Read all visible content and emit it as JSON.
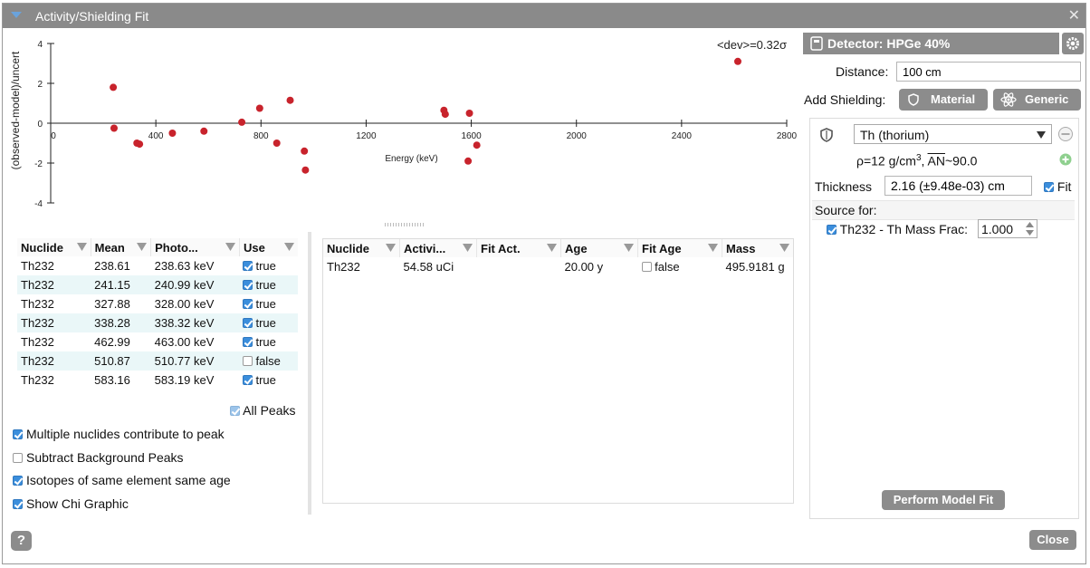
{
  "window": {
    "title": "Activity/Shielding Fit"
  },
  "chart_data": {
    "type": "scatter",
    "title": "",
    "annotation": "<dev>=0.32σ",
    "xlabel": "Energy (keV)",
    "ylabel": "(observed-model)/uncert",
    "xlim": [
      0,
      2800
    ],
    "ylim": [
      -4,
      4
    ],
    "xticks": [
      0,
      400,
      800,
      1200,
      1600,
      2000,
      2400,
      2800
    ],
    "yticks": [
      -4,
      -2,
      0,
      2,
      4
    ],
    "color": "#c8232c",
    "points": [
      {
        "x": 238,
        "y": 1.8
      },
      {
        "x": 241,
        "y": -0.25
      },
      {
        "x": 328,
        "y": -1.0
      },
      {
        "x": 338,
        "y": -1.05
      },
      {
        "x": 463,
        "y": -0.5
      },
      {
        "x": 583,
        "y": -0.4
      },
      {
        "x": 727,
        "y": 0.05
      },
      {
        "x": 795,
        "y": 0.75
      },
      {
        "x": 860,
        "y": -1.0
      },
      {
        "x": 911,
        "y": 1.15
      },
      {
        "x": 965,
        "y": -1.4
      },
      {
        "x": 969,
        "y": -2.35
      },
      {
        "x": 1496,
        "y": 0.65
      },
      {
        "x": 1501,
        "y": 0.45
      },
      {
        "x": 1588,
        "y": -1.9
      },
      {
        "x": 1593,
        "y": 0.5
      },
      {
        "x": 1621,
        "y": -1.1
      },
      {
        "x": 2614,
        "y": 3.1
      }
    ]
  },
  "peaks_table": {
    "headers": [
      "Nuclide",
      "Mean",
      "Photo...",
      "Use"
    ],
    "rows": [
      {
        "nuclide": "Th232",
        "mean": "238.61",
        "photo": "238.63 keV",
        "use": true,
        "use_label": "true"
      },
      {
        "nuclide": "Th232",
        "mean": "241.15",
        "photo": "240.99 keV",
        "use": true,
        "use_label": "true"
      },
      {
        "nuclide": "Th232",
        "mean": "327.88",
        "photo": "328.00 keV",
        "use": true,
        "use_label": "true"
      },
      {
        "nuclide": "Th232",
        "mean": "338.28",
        "photo": "338.32 keV",
        "use": true,
        "use_label": "true"
      },
      {
        "nuclide": "Th232",
        "mean": "462.99",
        "photo": "463.00 keV",
        "use": true,
        "use_label": "true"
      },
      {
        "nuclide": "Th232",
        "mean": "510.87",
        "photo": "510.77 keV",
        "use": false,
        "use_label": "false"
      },
      {
        "nuclide": "Th232",
        "mean": "583.16",
        "photo": "583.19 keV",
        "use": true,
        "use_label": "true"
      }
    ]
  },
  "all_peaks_label": "All Peaks",
  "options": [
    {
      "label": "Multiple nuclides contribute to peak",
      "checked": true
    },
    {
      "label": "Subtract Background Peaks",
      "checked": false
    },
    {
      "label": "Isotopes of same element same age",
      "checked": true
    },
    {
      "label": "Show Chi Graphic",
      "checked": true
    }
  ],
  "nuclide_table": {
    "headers": [
      "Nuclide",
      "Activi...",
      "Fit Act.",
      "Age",
      "Fit Age",
      "Mass"
    ],
    "rows": [
      {
        "nuclide": "Th232",
        "activity": "54.58 uCi",
        "fit_act": "",
        "age": "20.00 y",
        "fit_age": false,
        "fit_age_label": "false",
        "mass": "495.9181 g"
      }
    ]
  },
  "detector": {
    "label": "Detector: HPGe 40%"
  },
  "distance": {
    "label": "Distance:",
    "value": "100 cm"
  },
  "add_shielding": {
    "label": "Add Shielding:",
    "material": "Material",
    "generic": "Generic"
  },
  "shield": {
    "material": "Th (thorium)",
    "density_prefix": "ρ=12 g/cm",
    "density_exp": "3",
    "an_prefix": ", ",
    "an_label": "AN",
    "an_value": "~90.0",
    "thickness_label": "Thickness",
    "thickness_value": "2.16 (±9.48e-03) cm",
    "fit_label": "Fit",
    "source_for_label": "Source for:",
    "source_label": "Th232 - Th Mass Frac:",
    "source_value": "1.000"
  },
  "buttons": {
    "perform_fit": "Perform Model Fit",
    "close": "Close",
    "help": "?"
  }
}
